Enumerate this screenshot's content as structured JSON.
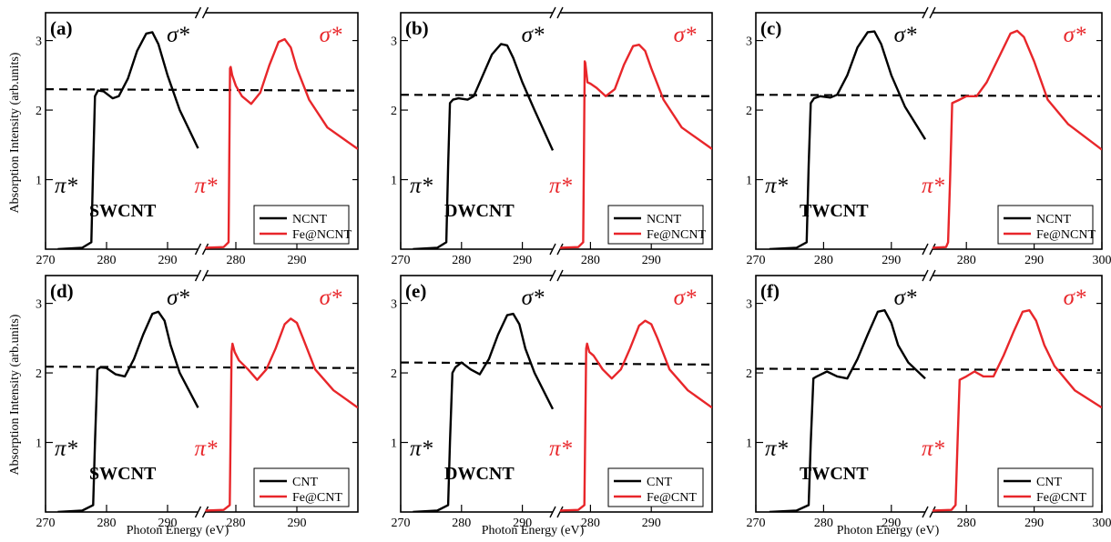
{
  "figure": {
    "ylabel": "Absorption Intensity (arb.units)",
    "xlabel": "Photon Energy (eV)"
  },
  "chart_data": [
    {
      "panel_tag": "(a)",
      "tube": "SWCNT",
      "type": "line",
      "legend": [
        "NCNT",
        "Fe@NCNT"
      ],
      "legend_position": "bottom-right",
      "peak_labels": {
        "pi_star": "π*",
        "sigma_star": "σ*"
      },
      "x_left_ticks": [
        "270",
        "280",
        "290"
      ],
      "x_right_ticks": [
        "280",
        "290"
      ],
      "yticks": [
        "1",
        "2",
        "3"
      ],
      "ylim": [
        0,
        3.4
      ],
      "x_break": true,
      "series": [
        {
          "name": "NCNT",
          "color": "#000000",
          "segment": "left",
          "x": [
            272,
            276,
            277.5,
            277.8,
            278.1,
            278.6,
            279.5,
            281,
            282,
            283.5,
            285,
            286.5,
            287.5,
            288.5,
            290,
            292,
            295
          ],
          "y": [
            0,
            0.02,
            0.1,
            1.2,
            2.2,
            2.28,
            2.27,
            2.17,
            2.2,
            2.45,
            2.85,
            3.1,
            3.12,
            2.95,
            2.5,
            2.0,
            1.45
          ]
        },
        {
          "name": "Fe@NCNT",
          "color": "#e8262a",
          "segment": "right",
          "x": [
            275,
            278,
            278.8,
            279.05,
            279.15,
            279.4,
            280,
            281,
            282.5,
            284,
            285.5,
            287,
            288,
            289,
            290,
            292,
            295,
            300
          ],
          "y": [
            0.02,
            0.03,
            0.1,
            2.6,
            2.62,
            2.5,
            2.35,
            2.2,
            2.09,
            2.25,
            2.65,
            2.98,
            3.02,
            2.9,
            2.6,
            2.15,
            1.75,
            1.44
          ]
        }
      ],
      "dashed_line": {
        "y_start": 2.3,
        "y_end": 2.28
      }
    },
    {
      "panel_tag": "(b)",
      "tube": "DWCNT",
      "type": "line",
      "legend": [
        "NCNT",
        "Fe@NCNT"
      ],
      "legend_position": "bottom-right",
      "peak_labels": {
        "pi_star": "π*",
        "sigma_star": "σ*"
      },
      "x_left_ticks": [
        "270",
        "280",
        "290"
      ],
      "x_right_ticks": [
        "280",
        "290"
      ],
      "yticks": [
        "1",
        "2",
        "3"
      ],
      "ylim": [
        0,
        3.4
      ],
      "x_break": true,
      "series": [
        {
          "name": "NCNT",
          "color": "#000000",
          "segment": "left",
          "x": [
            272,
            276,
            277.5,
            277.8,
            278.1,
            278.6,
            279.5,
            281,
            282,
            283.5,
            285,
            286.5,
            287.5,
            288.5,
            290,
            292,
            295
          ],
          "y": [
            0,
            0.02,
            0.1,
            1.2,
            2.1,
            2.15,
            2.17,
            2.15,
            2.2,
            2.5,
            2.8,
            2.95,
            2.93,
            2.75,
            2.4,
            2.0,
            1.42
          ]
        },
        {
          "name": "Fe@NCNT",
          "color": "#e8262a",
          "segment": "right",
          "x": [
            275,
            278,
            278.8,
            279.05,
            279.15,
            279.5,
            280,
            281,
            282.5,
            284,
            285.5,
            287,
            288,
            289,
            290,
            292,
            295,
            300
          ],
          "y": [
            0.02,
            0.03,
            0.1,
            2.7,
            2.68,
            2.4,
            2.38,
            2.32,
            2.2,
            2.3,
            2.65,
            2.92,
            2.94,
            2.85,
            2.6,
            2.15,
            1.75,
            1.44
          ]
        }
      ],
      "dashed_line": {
        "y_start": 2.22,
        "y_end": 2.2
      }
    },
    {
      "panel_tag": "(c)",
      "tube": "TWCNT",
      "type": "line",
      "legend": [
        "NCNT",
        "Fe@NCNT"
      ],
      "legend_position": "bottom-right",
      "peak_labels": {
        "pi_star": "π*",
        "sigma_star": "σ*"
      },
      "x_left_ticks": [
        "270",
        "280",
        "290"
      ],
      "x_right_ticks": [
        "280",
        "290",
        "300"
      ],
      "yticks": [
        "1",
        "2",
        "3"
      ],
      "ylim": [
        0,
        3.4
      ],
      "x_break": true,
      "series": [
        {
          "name": "NCNT",
          "color": "#000000",
          "segment": "left",
          "x": [
            272,
            276,
            277.5,
            277.8,
            278.1,
            278.6,
            279.5,
            281,
            282,
            283.5,
            285,
            286.5,
            287.5,
            288.5,
            290,
            292,
            295
          ],
          "y": [
            0,
            0.02,
            0.1,
            1.2,
            2.1,
            2.17,
            2.2,
            2.18,
            2.22,
            2.5,
            2.9,
            3.12,
            3.13,
            2.95,
            2.5,
            2.05,
            1.58
          ]
        },
        {
          "name": "Fe@NCNT",
          "color": "#e8262a",
          "segment": "right",
          "x": [
            275,
            277,
            277.3,
            277.6,
            277.9,
            279,
            280,
            281.5,
            283,
            285,
            286.5,
            287.5,
            288.5,
            290,
            292,
            295,
            300
          ],
          "y": [
            0.02,
            0.03,
            0.1,
            1.0,
            2.1,
            2.15,
            2.2,
            2.2,
            2.4,
            2.8,
            3.1,
            3.14,
            3.05,
            2.7,
            2.15,
            1.8,
            1.43
          ]
        }
      ],
      "dashed_line": {
        "y_start": 2.22,
        "y_end": 2.2
      }
    },
    {
      "panel_tag": "(d)",
      "tube": "SWCNT",
      "type": "line",
      "legend": [
        "CNT",
        "Fe@CNT"
      ],
      "legend_position": "bottom-right",
      "peak_labels": {
        "pi_star": "π*",
        "sigma_star": "σ*"
      },
      "x_left_ticks": [
        "270",
        "280",
        "290"
      ],
      "x_right_ticks": [
        "280",
        "290"
      ],
      "yticks": [
        "1",
        "2",
        "3"
      ],
      "ylim": [
        0,
        3.4
      ],
      "x_break": true,
      "series": [
        {
          "name": "CNT",
          "color": "#000000",
          "segment": "left",
          "x": [
            272,
            276,
            277.8,
            278.1,
            278.5,
            279,
            280,
            281.5,
            283,
            284.5,
            286,
            287.5,
            288.5,
            289.5,
            290.5,
            292,
            295
          ],
          "y": [
            0,
            0.02,
            0.1,
            1.0,
            2.05,
            2.08,
            2.07,
            1.98,
            1.95,
            2.2,
            2.55,
            2.85,
            2.88,
            2.75,
            2.4,
            2.0,
            1.5
          ]
        },
        {
          "name": "Fe@CNT",
          "color": "#e8262a",
          "segment": "right",
          "x": [
            275,
            278,
            279,
            279.3,
            279.45,
            279.8,
            280.5,
            282,
            283.5,
            285,
            286.5,
            288,
            289,
            290,
            291,
            293,
            296,
            300
          ],
          "y": [
            0.02,
            0.03,
            0.1,
            2.3,
            2.42,
            2.3,
            2.18,
            2.05,
            1.9,
            2.05,
            2.35,
            2.7,
            2.78,
            2.72,
            2.5,
            2.05,
            1.75,
            1.5
          ]
        }
      ],
      "dashed_line": {
        "y_start": 2.09,
        "y_end": 2.07
      }
    },
    {
      "panel_tag": "(e)",
      "tube": "DWCNT",
      "type": "line",
      "legend": [
        "CNT",
        "Fe@CNT"
      ],
      "legend_position": "bottom-right",
      "peak_labels": {
        "pi_star": "π*",
        "sigma_star": "σ*"
      },
      "x_left_ticks": [
        "270",
        "280",
        "290"
      ],
      "x_right_ticks": [
        "280",
        "290"
      ],
      "yticks": [
        "1",
        "2",
        "3"
      ],
      "ylim": [
        0,
        3.4
      ],
      "x_break": true,
      "series": [
        {
          "name": "CNT",
          "color": "#000000",
          "segment": "left",
          "x": [
            272,
            276,
            277.8,
            278.1,
            278.5,
            279,
            280,
            281.5,
            283,
            284.5,
            286,
            287.5,
            288.5,
            289.5,
            290.5,
            292,
            295
          ],
          "y": [
            0,
            0.02,
            0.1,
            1.0,
            2.0,
            2.08,
            2.15,
            2.05,
            1.98,
            2.2,
            2.55,
            2.83,
            2.85,
            2.7,
            2.35,
            2.0,
            1.48
          ]
        },
        {
          "name": "Fe@CNT",
          "color": "#e8262a",
          "segment": "right",
          "x": [
            275,
            278,
            279,
            279.3,
            279.45,
            279.8,
            280.5,
            282,
            283.5,
            285,
            286.5,
            288,
            289,
            290,
            291,
            293,
            296,
            300
          ],
          "y": [
            0.02,
            0.03,
            0.1,
            2.35,
            2.42,
            2.3,
            2.25,
            2.05,
            1.92,
            2.05,
            2.35,
            2.68,
            2.75,
            2.7,
            2.5,
            2.05,
            1.75,
            1.5
          ]
        }
      ],
      "dashed_line": {
        "y_start": 2.15,
        "y_end": 2.12
      }
    },
    {
      "panel_tag": "(f)",
      "tube": "TWCNT",
      "type": "line",
      "legend": [
        "CNT",
        "Fe@CNT"
      ],
      "legend_position": "bottom-right",
      "peak_labels": {
        "pi_star": "π*",
        "sigma_star": "σ*"
      },
      "x_left_ticks": [
        "270",
        "280",
        "290"
      ],
      "x_right_ticks": [
        "280",
        "290",
        "300"
      ],
      "yticks": [
        "1",
        "2",
        "3"
      ],
      "ylim": [
        0,
        3.4
      ],
      "x_break": true,
      "series": [
        {
          "name": "CNT",
          "color": "#000000",
          "segment": "left",
          "x": [
            272,
            276,
            277.8,
            278.1,
            278.5,
            279,
            280.5,
            282,
            283.5,
            285,
            286.5,
            288,
            289,
            290,
            291,
            292.5,
            295
          ],
          "y": [
            0,
            0.02,
            0.1,
            1.0,
            1.92,
            1.95,
            2.02,
            1.95,
            1.92,
            2.2,
            2.55,
            2.88,
            2.9,
            2.72,
            2.4,
            2.15,
            1.92
          ]
        },
        {
          "name": "Fe@CNT",
          "color": "#e8262a",
          "segment": "right",
          "x": [
            275,
            277.8,
            278.4,
            278.7,
            279,
            280,
            281.2,
            282.5,
            284,
            285.5,
            287,
            288.3,
            289.3,
            290.3,
            291.5,
            293,
            296,
            300
          ],
          "y": [
            0.02,
            0.03,
            0.1,
            1.0,
            1.9,
            1.95,
            2.02,
            1.95,
            1.95,
            2.25,
            2.6,
            2.88,
            2.9,
            2.75,
            2.4,
            2.1,
            1.75,
            1.5
          ]
        }
      ],
      "dashed_line": {
        "y_start": 2.06,
        "y_end": 2.04
      }
    }
  ]
}
